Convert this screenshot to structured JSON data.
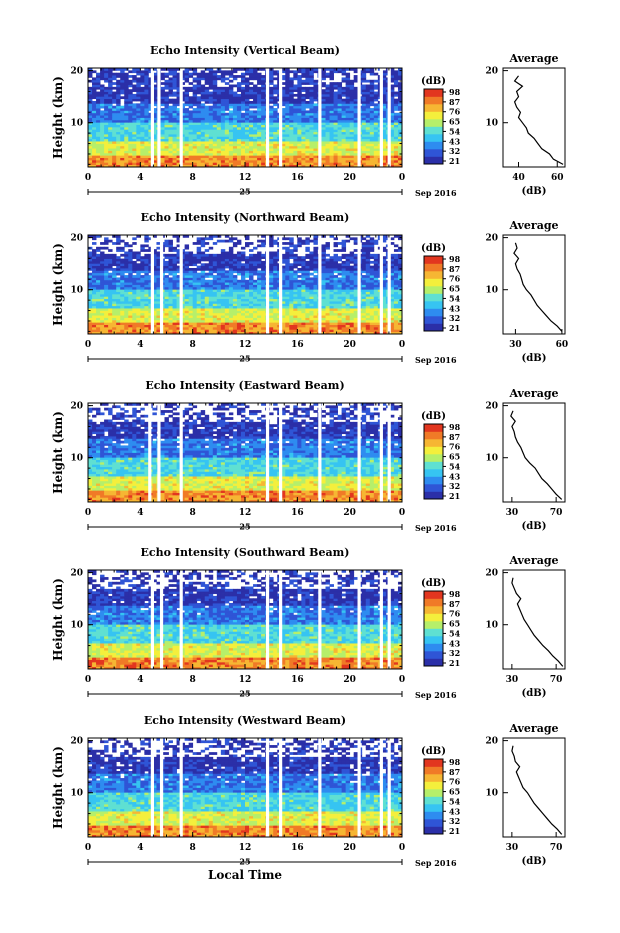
{
  "figure": {
    "bottom_label": "Local Time"
  },
  "colorbar_palette": [
    "#2b2fa8",
    "#2f55d6",
    "#2e8cf0",
    "#36c4f2",
    "#5fe0d2",
    "#b6ef6a",
    "#f4ef3c",
    "#f6b633",
    "#f07a27",
    "#e2361f"
  ],
  "chart_data": [
    {
      "type": "heatmap",
      "title": "Echo Intensity (Vertical Beam)",
      "ylabel": "Height (km)",
      "x_ticks": [
        "0",
        "4",
        "8",
        "12",
        "16",
        "20",
        "0"
      ],
      "date_day": "25",
      "date_month": "Sep 2016",
      "xlim": [
        0,
        24
      ],
      "ylim": [
        1.5,
        20.5
      ],
      "y_ticks": [
        "20",
        "10"
      ],
      "colorbar_unit": "(dB)",
      "colorbar_ticks": [
        "98",
        "87",
        "76",
        "65",
        "54",
        "43",
        "32",
        "21"
      ],
      "gap_hours": [
        4.8,
        5.3,
        7.0,
        13.6,
        14.6,
        17.6,
        20.6,
        22.3,
        22.9
      ],
      "avg_title": "Average",
      "avg_xlabel": "(dB)",
      "avg_x_ticks": [
        "40",
        "60"
      ],
      "avg_y_ticks": [
        "20",
        "10"
      ],
      "avg_xlim": [
        32,
        64
      ],
      "avg_profile": {
        "height": [
          2,
          3,
          4,
          5,
          6,
          7,
          8,
          9,
          10,
          11,
          12,
          13,
          14,
          15,
          16,
          17,
          18,
          19
        ],
        "db": [
          63,
          58,
          56,
          52,
          50,
          48,
          45,
          44,
          42,
          40,
          41,
          39,
          38,
          40,
          39,
          42,
          38,
          40
        ]
      }
    },
    {
      "type": "heatmap",
      "title": "Echo Intensity (Northward Beam)",
      "ylabel": "Height (km)",
      "x_ticks": [
        "0",
        "4",
        "8",
        "12",
        "16",
        "20",
        "0"
      ],
      "date_day": "25",
      "date_month": "Sep 2016",
      "xlim": [
        0,
        24
      ],
      "ylim": [
        1.5,
        20.5
      ],
      "y_ticks": [
        "20",
        "10"
      ],
      "colorbar_unit": "(dB)",
      "colorbar_ticks": [
        "98",
        "87",
        "76",
        "65",
        "54",
        "43",
        "32",
        "21"
      ],
      "gap_hours": [
        4.8,
        5.5,
        7.0,
        13.6,
        14.6,
        17.6,
        20.6,
        22.3,
        22.9
      ],
      "avg_title": "Average",
      "avg_xlabel": "(dB)",
      "avg_x_ticks": [
        "30",
        "60"
      ],
      "avg_y_ticks": [
        "20",
        "10"
      ],
      "avg_xlim": [
        22,
        62
      ],
      "avg_profile": {
        "height": [
          2,
          3,
          4,
          5,
          6,
          7,
          8,
          9,
          10,
          11,
          12,
          13,
          14,
          15,
          16,
          17,
          18,
          19
        ],
        "db": [
          60,
          57,
          53,
          50,
          47,
          44,
          42,
          40,
          37,
          35,
          34,
          33,
          31,
          30,
          32,
          29,
          31,
          30
        ]
      }
    },
    {
      "type": "heatmap",
      "title": "Echo Intensity (Eastward Beam)",
      "ylabel": "Height (km)",
      "x_ticks": [
        "0",
        "4",
        "8",
        "12",
        "16",
        "20",
        "0"
      ],
      "date_day": "25",
      "date_month": "Sep 2016",
      "xlim": [
        0,
        24
      ],
      "ylim": [
        1.5,
        20.5
      ],
      "y_ticks": [
        "20",
        "10"
      ],
      "colorbar_unit": "(dB)",
      "colorbar_ticks": [
        "98",
        "87",
        "76",
        "65",
        "54",
        "43",
        "32",
        "21"
      ],
      "gap_hours": [
        4.6,
        5.3,
        7.0,
        13.6,
        14.6,
        17.6,
        20.6,
        22.3,
        22.9
      ],
      "avg_title": "Average",
      "avg_xlabel": "(dB)",
      "avg_x_ticks": [
        "30",
        "70"
      ],
      "avg_y_ticks": [
        "20",
        "10"
      ],
      "avg_xlim": [
        22,
        78
      ],
      "avg_profile": {
        "height": [
          2,
          3,
          4,
          5,
          6,
          7,
          8,
          9,
          10,
          11,
          12,
          13,
          14,
          15,
          16,
          17,
          18,
          19
        ],
        "db": [
          75,
          70,
          66,
          62,
          57,
          54,
          51,
          46,
          42,
          40,
          38,
          35,
          33,
          32,
          30,
          33,
          29,
          31
        ]
      }
    },
    {
      "type": "heatmap",
      "title": "Echo Intensity (Southward Beam)",
      "ylabel": "Height (km)",
      "x_ticks": [
        "0",
        "4",
        "8",
        "12",
        "16",
        "20",
        "0"
      ],
      "date_day": "25",
      "date_month": "Sep 2016",
      "xlim": [
        0,
        24
      ],
      "ylim": [
        1.5,
        20.5
      ],
      "y_ticks": [
        "20",
        "10"
      ],
      "colorbar_unit": "(dB)",
      "colorbar_ticks": [
        "98",
        "87",
        "76",
        "65",
        "54",
        "43",
        "32",
        "21"
      ],
      "gap_hours": [
        4.8,
        5.5,
        7.0,
        13.6,
        14.6,
        17.6,
        20.6,
        22.3,
        22.9
      ],
      "avg_title": "Average",
      "avg_xlabel": "(dB)",
      "avg_x_ticks": [
        "30",
        "70"
      ],
      "avg_y_ticks": [
        "20",
        "10"
      ],
      "avg_xlim": [
        22,
        78
      ],
      "avg_profile": {
        "height": [
          2,
          3,
          4,
          5,
          6,
          7,
          8,
          9,
          10,
          11,
          12,
          13,
          14,
          15,
          16,
          17,
          18,
          19
        ],
        "db": [
          76,
          72,
          67,
          63,
          58,
          54,
          50,
          47,
          44,
          41,
          39,
          37,
          35,
          38,
          34,
          32,
          30,
          31
        ]
      }
    },
    {
      "type": "heatmap",
      "title": "Echo Intensity (Westward Beam)",
      "ylabel": "Height (km)",
      "x_ticks": [
        "0",
        "4",
        "8",
        "12",
        "16",
        "20",
        "0"
      ],
      "date_day": "25",
      "date_month": "Sep 2016",
      "xlim": [
        0,
        24
      ],
      "ylim": [
        1.5,
        20.5
      ],
      "y_ticks": [
        "20",
        "10"
      ],
      "colorbar_unit": "(dB)",
      "colorbar_ticks": [
        "98",
        "87",
        "76",
        "65",
        "54",
        "43",
        "32",
        "21"
      ],
      "gap_hours": [
        4.8,
        5.5,
        7.0,
        13.6,
        14.6,
        17.6,
        20.6,
        22.3,
        22.9
      ],
      "avg_title": "Average",
      "avg_xlabel": "(dB)",
      "avg_x_ticks": [
        "30",
        "70"
      ],
      "avg_y_ticks": [
        "20",
        "10"
      ],
      "avg_xlim": [
        22,
        78
      ],
      "avg_profile": {
        "height": [
          2,
          3,
          4,
          5,
          6,
          7,
          8,
          9,
          10,
          11,
          12,
          13,
          14,
          15,
          16,
          17,
          18,
          19
        ],
        "db": [
          75,
          71,
          66,
          62,
          58,
          54,
          50,
          47,
          44,
          40,
          38,
          36,
          34,
          37,
          33,
          32,
          30,
          31
        ]
      }
    }
  ]
}
